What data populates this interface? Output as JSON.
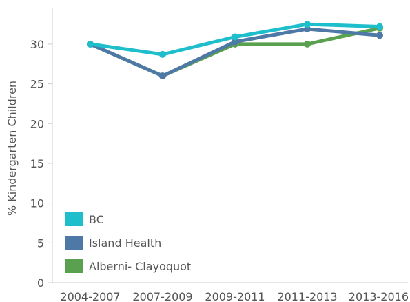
{
  "chart_data": {
    "type": "line",
    "title": "",
    "xlabel": "",
    "ylabel": "% Kindergarten Children",
    "categories": [
      "2004-2007",
      "2007-2009",
      "2009-2011",
      "2011-2013",
      "2013-2016"
    ],
    "y_ticks": [
      0,
      5,
      10,
      15,
      20,
      25,
      30
    ],
    "ylim": [
      0,
      34.5
    ],
    "grid": false,
    "legend_position": "bottom-left",
    "series": [
      {
        "name": "Alberni- Clayoquot",
        "color": "#59a14f",
        "values": [
          30,
          26,
          30,
          30,
          32
        ]
      },
      {
        "name": "Island Health",
        "color": "#4e79a7",
        "values": [
          30,
          26,
          30.3,
          31.9,
          31.1
        ]
      },
      {
        "name": "BC",
        "color": "#1fbecc",
        "values": [
          30,
          28.7,
          30.9,
          32.5,
          32.2
        ]
      }
    ],
    "legend_order": [
      "BC",
      "Island Health",
      "Alberni- Clayoquot"
    ]
  }
}
